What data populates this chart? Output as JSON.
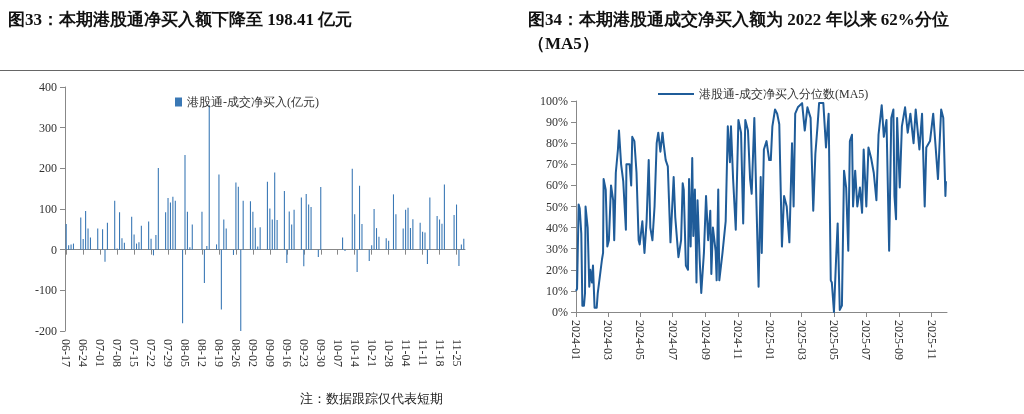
{
  "chart_data": [
    {
      "type": "bar",
      "title": "图33：本期港股通净买入额下降至 198.41 亿元",
      "annotations": [
        "注：数据跟踪仅代表短期"
      ],
      "legend": "top",
      "ylim": [
        -200,
        400
      ],
      "yticks": [
        -200,
        -100,
        0,
        100,
        200,
        300,
        400
      ],
      "categories": [
        "06-17",
        null,
        null,
        null,
        null,
        null,
        null,
        "06-24",
        null,
        null,
        null,
        null,
        null,
        null,
        "07-01",
        null,
        null,
        null,
        null,
        null,
        null,
        "07-08",
        null,
        null,
        null,
        null,
        null,
        null,
        "07-15",
        null,
        null,
        null,
        null,
        null,
        null,
        "07-22",
        null,
        null,
        null,
        null,
        null,
        null,
        "07-29",
        null,
        null,
        null,
        null,
        null,
        null,
        "08-05",
        null,
        null,
        null,
        null,
        null,
        null,
        "08-12",
        null,
        null,
        null,
        null,
        null,
        null,
        "08-19",
        null,
        null,
        null,
        null,
        null,
        null,
        "08-26",
        null,
        null,
        null,
        null,
        null,
        null,
        "09-02",
        null,
        null,
        null,
        null,
        null,
        null,
        "09-09",
        null,
        null,
        null,
        null,
        null,
        null,
        "09-16",
        null,
        null,
        null,
        null,
        null,
        null,
        "09-23",
        null,
        null,
        null,
        null,
        null,
        null,
        "09-30",
        null,
        null,
        null,
        null,
        null,
        null,
        "10-07",
        null,
        null,
        null,
        null,
        null,
        null,
        "10-14",
        null,
        null,
        null,
        null,
        null,
        null,
        "10-21",
        null,
        null,
        null,
        null,
        null,
        null,
        "10-28",
        null,
        null,
        null,
        null,
        null,
        null,
        "11-04",
        null,
        null,
        null,
        null,
        null,
        null,
        "11-11",
        null,
        null,
        null,
        null,
        null,
        null,
        "11-18",
        null,
        null,
        null,
        null,
        null,
        null,
        "11-25",
        null,
        null,
        null
      ],
      "series": [
        {
          "name": "港股通-成交净买入(亿元)",
          "color": "#3a78b5",
          "values": [
            63,
            11,
            13,
            15,
            null,
            null,
            79,
            26,
            95,
            52,
            30,
            null,
            null,
            52,
            null,
            50,
            -30,
            66,
            null,
            null,
            120,
            3,
            92,
            28,
            17,
            null,
            null,
            81,
            37,
            15,
            18,
            59,
            null,
            null,
            69,
            27,
            -14,
            36,
            201,
            null,
            null,
            92,
            127,
            116,
            130,
            120,
            null,
            null,
            -181,
            233,
            93,
            6,
            62,
            null,
            null,
            null,
            93,
            -82,
            9,
            355,
            null,
            null,
            13,
            185,
            -147,
            74,
            52,
            null,
            null,
            -13,
            165,
            155,
            -200,
            120,
            null,
            null,
            119,
            93,
            54,
            8,
            55,
            null,
            null,
            167,
            101,
            74,
            190,
            73,
            null,
            null,
            144,
            -33,
            94,
            62,
            98,
            null,
            null,
            128,
            -41,
            137,
            111,
            105,
            null,
            null,
            -18,
            154,
            null,
            null,
            null,
            null,
            null,
            null,
            null,
            null,
            30,
            -3,
            null,
            null,
            199,
            87,
            -55,
            157,
            63,
            null,
            null,
            -28,
            11,
            100,
            53,
            32,
            null,
            null,
            28,
            22,
            null,
            136,
            87,
            null,
            null,
            52,
            98,
            103,
            53,
            75,
            null,
            null,
            66,
            44,
            42,
            -35,
            128,
            null,
            null,
            83,
            74,
            64,
            160,
            null,
            null,
            null,
            85,
            111,
            -40,
            13,
            27
          ]
        }
      ]
    },
    {
      "type": "line",
      "title": "图34：本期港股通成交净买入额为 2022 年以来 62%分位（MA5）",
      "legend": "top",
      "xlim": [
        "2024-01-01",
        "2025-11-30"
      ],
      "xticks": [
        {
          "value": "2024-01",
          "label": "2024-01"
        },
        {
          "value": "2024-03",
          "label": "2024-03"
        },
        {
          "value": "2024-05",
          "label": "2024-05"
        },
        {
          "value": "2024-07",
          "label": "2024-07"
        },
        {
          "value": "2024-09",
          "label": "2024-09"
        },
        {
          "value": "2024-11",
          "label": "2024-11"
        },
        {
          "value": "2025-01",
          "label": "2025-01"
        },
        {
          "value": "2025-03",
          "label": "2025-03"
        },
        {
          "value": "2025-05",
          "label": "2025-05"
        },
        {
          "value": "2025-07",
          "label": "2025-07"
        },
        {
          "value": "2025-09",
          "label": "2025-09"
        },
        {
          "value": "2025-11",
          "label": "2025-11"
        }
      ],
      "ylim": [
        0,
        100
      ],
      "yticks": [
        {
          "value": 0,
          "label": "0%"
        },
        {
          "value": 10,
          "label": "10%"
        },
        {
          "value": 20,
          "label": "20%"
        },
        {
          "value": 30,
          "label": "30%"
        },
        {
          "value": 40,
          "label": "40%"
        },
        {
          "value": 50,
          "label": "50%"
        },
        {
          "value": 60,
          "label": "60%"
        },
        {
          "value": 70,
          "label": "70%"
        },
        {
          "value": 80,
          "label": "80%"
        },
        {
          "value": 90,
          "label": "90%"
        },
        {
          "value": 100,
          "label": "100%"
        }
      ],
      "x": [
        "2024-01-01",
        "2024-01-03",
        "2024-01-06",
        "2024-01-08",
        "2024-01-11",
        "2024-01-13",
        "2024-01-16",
        "2024-01-18",
        "2024-01-19",
        "2024-01-23",
        "2024-01-26",
        "2024-01-28",
        "2024-01-31",
        "2024-02-02",
        "2024-02-05",
        "2024-02-09",
        "2024-02-11",
        "2024-02-19",
        "2024-02-21",
        "2024-02-22",
        "2024-02-26",
        "2024-02-29",
        "2024-03-03",
        "2024-03-07",
        "2024-03-11",
        "2024-03-13",
        "2024-03-16",
        "2024-03-20",
        "2024-03-22",
        "2024-03-26",
        "2024-03-30",
        "2024-04-04",
        "2024-04-05",
        "2024-04-11",
        "2024-04-14",
        "2024-04-16",
        "2024-04-20",
        "2024-04-24",
        "2024-04-28",
        "2024-04-30",
        "2024-05-05",
        "2024-05-09",
        "2024-05-13",
        "2024-05-17",
        "2024-05-20",
        "2024-05-24",
        "2024-05-28",
        "2024-06-01",
        "2024-06-04",
        "2024-06-08",
        "2024-06-12",
        "2024-06-14",
        "2024-06-18",
        "2024-06-22",
        "2024-06-27",
        "2024-07-03",
        "2024-07-06",
        "2024-07-12",
        "2024-07-17",
        "2024-07-20",
        "2024-07-22",
        "2024-07-26",
        "2024-07-30",
        "2024-08-01",
        "2024-08-04",
        "2024-08-07",
        "2024-08-09",
        "2024-08-12",
        "2024-08-15",
        "2024-08-17",
        "2024-08-21",
        "2024-08-24",
        "2024-08-29",
        "2024-09-02",
        "2024-09-06",
        "2024-09-10",
        "2024-09-12",
        "2024-09-15",
        "2024-09-20",
        "2024-09-22",
        "2024-09-25",
        "2024-09-27",
        "2024-10-03",
        "2024-10-09",
        "2024-10-13",
        "2024-10-17",
        "2024-10-19",
        "2024-10-23",
        "2024-10-28",
        "2024-11-02",
        "2024-11-07",
        "2024-11-11",
        "2024-11-15",
        "2024-11-20",
        "2024-11-24",
        "2024-11-27",
        "2024-12-02",
        "2024-12-06",
        "2024-12-10",
        "2024-12-14",
        "2024-12-16",
        "2024-12-20",
        "2024-12-25",
        "2024-12-30",
        "2025-01-02",
        "2025-01-05",
        "2025-01-10",
        "2025-01-14",
        "2025-01-18",
        "2025-01-23",
        "2025-01-27",
        "2025-02-01",
        "2025-02-06",
        "2025-02-11",
        "2025-02-14",
        "2025-02-17",
        "2025-02-22",
        "2025-03-02",
        "2025-03-07",
        "2025-03-12",
        "2025-03-18",
        "2025-03-23",
        "2025-03-27",
        "2025-03-31",
        "2025-04-03",
        "2025-04-11",
        "2025-04-16",
        "2025-04-21",
        "2025-04-25",
        "2025-04-27",
        "2025-05-01",
        "2025-05-05",
        "2025-05-08",
        "2025-05-12",
        "2025-05-16",
        "2025-05-20",
        "2025-05-24",
        "2025-05-28",
        "2025-05-31",
        "2025-06-04",
        "2025-06-06",
        "2025-06-10",
        "2025-06-14",
        "2025-06-19",
        "2025-06-23",
        "2025-06-26",
        "2025-07-01",
        "2025-07-05",
        "2025-07-10",
        "2025-07-15",
        "2025-07-20",
        "2025-07-24",
        "2025-07-30",
        "2025-08-03",
        "2025-08-08",
        "2025-08-13",
        "2025-08-17",
        "2025-08-21",
        "2025-08-23",
        "2025-08-26",
        "2025-08-28",
        "2025-09-02",
        "2025-09-06",
        "2025-09-12",
        "2025-09-17",
        "2025-09-22",
        "2025-09-28",
        "2025-10-02",
        "2025-10-09",
        "2025-10-14",
        "2025-10-19",
        "2025-10-22",
        "2025-10-29",
        "2025-11-04",
        "2025-11-13",
        "2025-11-19",
        "2025-11-23",
        "2025-11-27",
        "2025-11-28"
      ],
      "series": [
        {
          "name": "港股通-成交净买入分位数(MA5)",
          "color": "#1f5c99",
          "values": [
            10,
            11,
            51,
            49,
            37,
            3,
            3,
            9,
            50,
            40,
            12,
            20,
            14,
            22,
            2,
            2,
            9,
            25,
            28,
            63,
            58,
            31,
            34,
            60,
            53,
            34,
            66,
            77,
            86,
            70,
            62,
            39,
            70,
            70,
            60,
            83,
            81,
            66,
            34,
            32,
            43,
            28,
            43,
            72,
            40,
            34,
            50,
            80,
            85,
            76,
            85,
            80,
            72,
            69,
            33,
            64,
            45,
            26,
            34,
            61,
            58,
            22,
            20,
            63,
            31,
            73,
            36,
            58,
            14,
            53,
            25,
            9,
            28,
            55,
            34,
            48,
            18,
            40,
            29,
            15,
            58,
            15,
            28,
            43,
            88,
            71,
            88,
            63,
            39,
            91,
            85,
            42,
            91,
            86,
            63,
            56,
            92,
            51,
            12,
            64,
            28,
            77,
            81,
            72,
            72,
            88,
            96,
            94,
            89,
            31,
            55,
            50,
            33,
            80,
            50,
            94,
            97,
            99,
            86,
            97,
            92,
            48,
            75,
            88,
            99,
            99,
            78,
            94,
            15,
            14,
            0,
            25,
            42,
            1,
            3,
            67,
            59,
            29,
            81,
            84,
            50,
            67,
            50,
            59,
            47,
            77,
            50,
            78,
            73,
            66,
            53,
            84,
            98,
            83,
            91,
            29,
            92,
            96,
            55,
            44,
            92,
            59,
            88,
            97,
            85,
            94,
            80,
            96,
            77,
            94,
            50,
            78,
            81,
            94,
            63,
            96,
            92,
            55,
            62
          ]
        }
      ]
    }
  ]
}
